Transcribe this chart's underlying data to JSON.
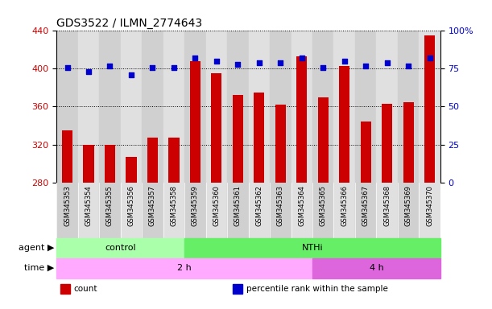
{
  "title": "GDS3522 / ILMN_2774643",
  "samples": [
    "GSM345353",
    "GSM345354",
    "GSM345355",
    "GSM345356",
    "GSM345357",
    "GSM345358",
    "GSM345359",
    "GSM345360",
    "GSM345361",
    "GSM345362",
    "GSM345363",
    "GSM345364",
    "GSM345365",
    "GSM345366",
    "GSM345367",
    "GSM345368",
    "GSM345369",
    "GSM345370"
  ],
  "counts": [
    335,
    320,
    320,
    307,
    327,
    327,
    408,
    395,
    372,
    375,
    362,
    413,
    370,
    403,
    344,
    363,
    365,
    435
  ],
  "percentiles": [
    76,
    73,
    77,
    71,
    76,
    76,
    82,
    80,
    78,
    79,
    79,
    82,
    76,
    80,
    77,
    79,
    77,
    82
  ],
  "ylim_left": [
    280,
    440
  ],
  "ylim_right": [
    0,
    100
  ],
  "yticks_left": [
    280,
    320,
    360,
    400,
    440
  ],
  "yticks_right": [
    0,
    25,
    50,
    75,
    100
  ],
  "bar_color": "#cc0000",
  "dot_color": "#0000cc",
  "agent_labels": [
    {
      "label": "control",
      "start": 0,
      "end": 6,
      "color": "#aaffaa"
    },
    {
      "label": "NTHi",
      "start": 6,
      "end": 18,
      "color": "#66ee66"
    }
  ],
  "time_labels": [
    {
      "label": "2 h",
      "start": 0,
      "end": 12,
      "color": "#ffaaff"
    },
    {
      "label": "4 h",
      "start": 12,
      "end": 18,
      "color": "#dd66dd"
    }
  ],
  "legend_items": [
    {
      "label": "count",
      "color": "#cc0000"
    },
    {
      "label": "percentile rank within the sample",
      "color": "#0000cc"
    }
  ],
  "col_colors": [
    "#d0d0d0",
    "#e0e0e0"
  ],
  "plot_bg": "#ffffff",
  "fig_bg": "#ffffff"
}
